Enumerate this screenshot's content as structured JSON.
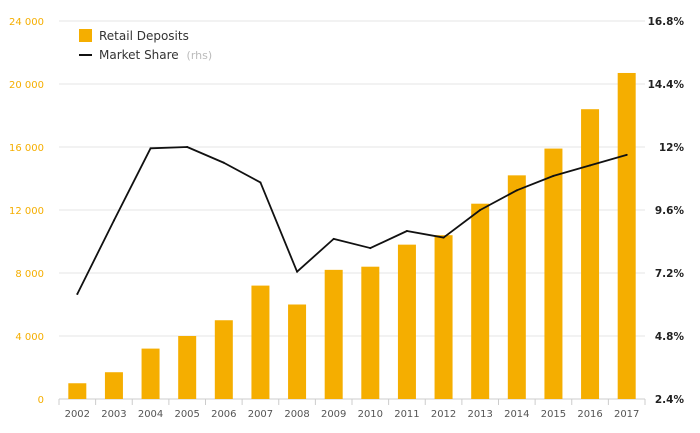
{
  "chart_data": {
    "type": "bar+line",
    "categories": [
      "2002",
      "2003",
      "2004",
      "2005",
      "2006",
      "2007",
      "2008",
      "2009",
      "2010",
      "2011",
      "2012",
      "2013",
      "2014",
      "2015",
      "2016",
      "2017"
    ],
    "series": [
      {
        "name": "Retail Deposits",
        "type": "bar",
        "axis": "left",
        "values": [
          1000,
          1700,
          3200,
          4000,
          5000,
          7200,
          6000,
          8200,
          8400,
          9800,
          10400,
          12400,
          14200,
          15900,
          18400,
          20700
        ]
      },
      {
        "name": "Market Share",
        "name_suffix": "(rhs)",
        "type": "line",
        "axis": "right",
        "values": [
          6.4,
          9.2,
          11.95,
          12.0,
          11.4,
          10.65,
          7.25,
          8.5,
          8.15,
          8.8,
          8.55,
          9.6,
          10.35,
          10.9,
          11.3,
          11.7
        ]
      }
    ],
    "left_axis": {
      "ylim": [
        0,
        24000
      ],
      "ticks": [
        0,
        4000,
        8000,
        12000,
        16000,
        20000,
        24000
      ],
      "tick_labels": [
        "0",
        "4 000",
        "8 000",
        "12 000",
        "16 000",
        "20 000",
        "24 000"
      ]
    },
    "right_axis": {
      "ylim": [
        2.4,
        16.8
      ],
      "ticks": [
        2.4,
        4.8,
        7.2,
        9.6,
        12.0,
        14.4,
        16.8
      ],
      "tick_labels": [
        "2.4%",
        "4.8%",
        "7.2%",
        "9.6%",
        "12%",
        "14.4%",
        "16.8%"
      ]
    },
    "grid": true,
    "legend_position": "top-left",
    "colors": {
      "bars": "#f5ae00",
      "line": "#111111",
      "grid": "#e6e6e6",
      "axis": "#cccccc"
    }
  },
  "legend": {
    "bars_label": "Retail Deposits",
    "line_label": "Market Share",
    "line_suffix": "(rhs)"
  }
}
